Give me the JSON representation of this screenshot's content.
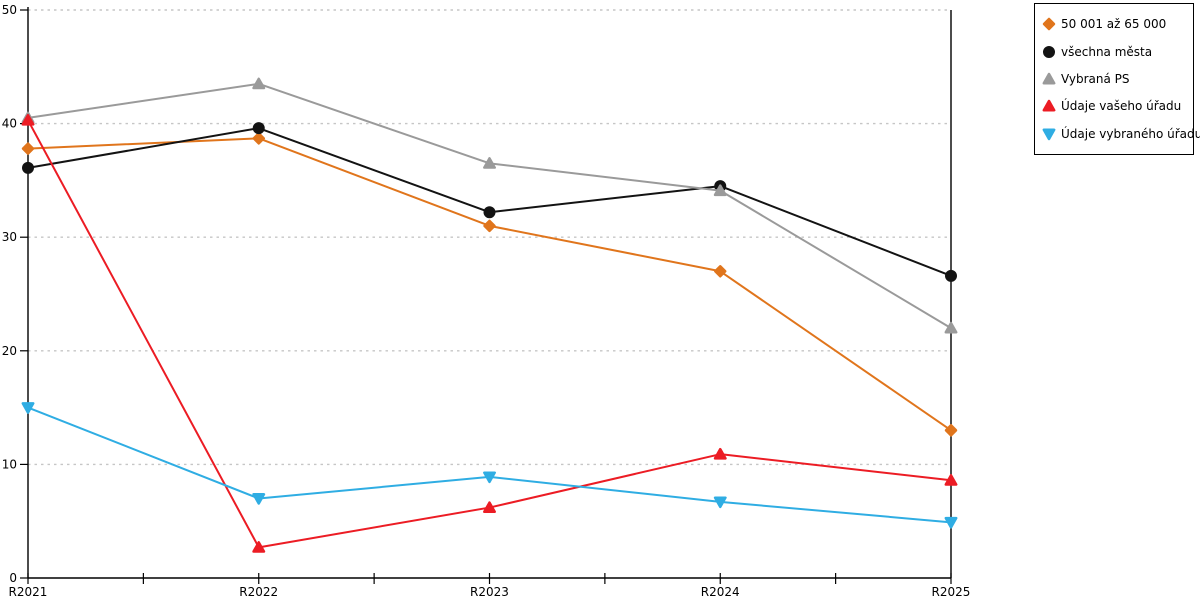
{
  "chart_data": {
    "type": "line",
    "title": "",
    "xlabel": "",
    "ylabel": "",
    "categories": [
      "R2021",
      "R2022",
      "R2023",
      "R2024",
      "R2025"
    ],
    "ylim": [
      0,
      50
    ],
    "yticks": [
      0,
      10,
      20,
      30,
      40,
      50
    ],
    "grid": "horizontal-dotted",
    "legend_position": "outside-top-right",
    "colors": {
      "axis": "#000000",
      "gridline": "#c6c6c6",
      "background": "#ffffff"
    },
    "series": [
      {
        "name": "50 001 až 65 000",
        "color": "#e0751c",
        "marker": "diamond",
        "values": [
          37.8,
          38.7,
          31.0,
          27.0,
          13.0
        ]
      },
      {
        "name": "všechna města",
        "color": "#131313",
        "marker": "circle",
        "values": [
          36.1,
          39.6,
          32.2,
          34.5,
          26.6
        ]
      },
      {
        "name": "Vybraná PS",
        "color": "#9a9a9a",
        "marker": "triangle-up",
        "values": [
          40.5,
          43.5,
          36.5,
          34.1,
          22.0
        ]
      },
      {
        "name": "Údaje vašeho úřadu",
        "color": "#ec1c24",
        "marker": "triangle-up",
        "values": [
          40.3,
          2.7,
          6.2,
          10.9,
          8.6
        ]
      },
      {
        "name": "Údaje vybraného úřadu",
        "color": "#2fade3",
        "marker": "triangle-down",
        "values": [
          15.0,
          7.0,
          8.9,
          6.7,
          4.9
        ]
      }
    ]
  }
}
